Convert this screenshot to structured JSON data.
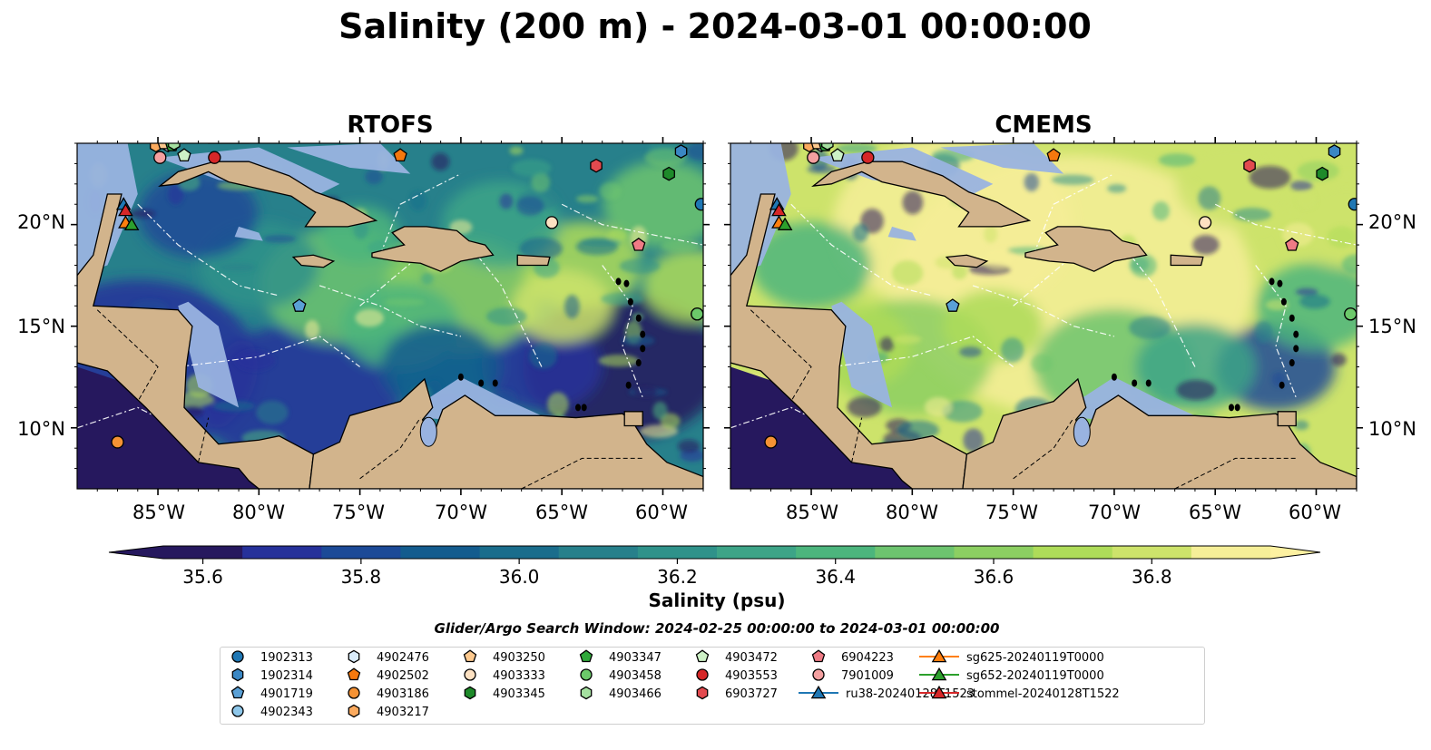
{
  "suptitle": "Salinity (200 m) - 2024-03-01 00:00:00",
  "panels": [
    {
      "title": "RTOFS",
      "style": "rtofs"
    },
    {
      "title": "CMEMS",
      "style": "cmems"
    }
  ],
  "map": {
    "lon_ticks": [
      "85°W",
      "80°W",
      "75°W",
      "70°W",
      "65°W",
      "60°W"
    ],
    "lat_ticks": [
      "20°N",
      "15°N",
      "10°N"
    ],
    "land_color": "#D2B48C",
    "shelf_color": "#99B3E0"
  },
  "colorbar": {
    "label": "Salinity (psu)",
    "ticks": [
      "35.6",
      "35.8",
      "36.0",
      "36.2",
      "36.4",
      "36.6",
      "36.8"
    ],
    "colors": [
      "#26185e",
      "#26319a",
      "#1c4a97",
      "#135c8e",
      "#1a6d8c",
      "#27808b",
      "#2f928a",
      "#3da487",
      "#4cb57d",
      "#6dc46f",
      "#8ccf62",
      "#aedc59",
      "#cde36b",
      "#f6ef98"
    ],
    "extend_low": "#26185e",
    "extend_high": "#fdf1a1"
  },
  "search_window": "Glider/Argo Search Window: 2024-02-25 00:00:00 to 2024-03-01 00:00:00",
  "chart_data": {
    "type": "heatmap",
    "title": "Salinity (200 m) - 2024-03-01 00:00:00",
    "panels": [
      "RTOFS",
      "CMEMS"
    ],
    "xlim": [
      -89,
      -58
    ],
    "ylim": [
      7,
      24
    ],
    "x_ticks": [
      -85,
      -80,
      -75,
      -70,
      -65,
      -60
    ],
    "y_ticks": [
      20,
      15,
      10
    ],
    "colorbar_range": [
      35.55,
      36.95
    ],
    "colorbar_ticks": [
      35.6,
      35.8,
      36.0,
      36.2,
      36.4,
      36.6,
      36.8
    ],
    "colorbar_label": "Salinity (psu)",
    "platforms": [
      {
        "name": "1902313",
        "marker": "circle",
        "color": "#1f77b4",
        "lon": -58.1,
        "lat": 21.0
      },
      {
        "name": "1902314",
        "marker": "hexagon",
        "color": "#3a87c4",
        "lon": -59.1,
        "lat": 23.6
      },
      {
        "name": "4901719",
        "marker": "pentagon",
        "color": "#5aa0d6",
        "lon": -78.0,
        "lat": 16.0
      },
      {
        "name": "4902343",
        "marker": "circle",
        "color": "#8ec7ea",
        "lon": -58.3,
        "lat": 15.6
      },
      {
        "name": "4902476",
        "marker": "hexagon",
        "color": "#d9ecfb",
        "lon": -84.5,
        "lat": 23.9
      },
      {
        "name": "4902502",
        "marker": "pentagon",
        "color": "#f5780e",
        "lon": -73.0,
        "lat": 23.4
      },
      {
        "name": "4903186",
        "marker": "circle",
        "color": "#f59234",
        "lon": -87.0,
        "lat": 9.3
      },
      {
        "name": "4903217",
        "marker": "hexagon",
        "color": "#fbaa5e",
        "lon": -85.1,
        "lat": 23.9
      },
      {
        "name": "4903250",
        "marker": "pentagon",
        "color": "#fdc98e",
        "lon": -84.7,
        "lat": 24.0
      },
      {
        "name": "4903333",
        "marker": "circle",
        "color": "#fde1c2",
        "lon": -65.5,
        "lat": 20.1
      },
      {
        "name": "4903345",
        "marker": "hexagon",
        "color": "#1e8a2a",
        "lon": -59.7,
        "lat": 22.5
      },
      {
        "name": "4903347",
        "marker": "pentagon",
        "color": "#2fa83a",
        "lon": -84.3,
        "lat": 23.9
      },
      {
        "name": "4903458",
        "marker": "circle",
        "color": "#6cc96a",
        "lon": -58.3,
        "lat": 15.6
      },
      {
        "name": "4903466",
        "marker": "hexagon",
        "color": "#a5e0a0",
        "lon": -84.2,
        "lat": 24.0
      },
      {
        "name": "4903472",
        "marker": "pentagon",
        "color": "#cdf1c6",
        "lon": -83.7,
        "lat": 23.4
      },
      {
        "name": "4903553",
        "marker": "circle",
        "color": "#d62728",
        "lon": -82.2,
        "lat": 23.3
      },
      {
        "name": "6903727",
        "marker": "hexagon",
        "color": "#e24a4f",
        "lon": -63.3,
        "lat": 22.9
      },
      {
        "name": "6904223",
        "marker": "pentagon",
        "color": "#ef7b85",
        "lon": -61.2,
        "lat": 19.0
      },
      {
        "name": "7901009",
        "marker": "circle",
        "color": "#f4a0a0",
        "lon": -84.9,
        "lat": 23.3
      },
      {
        "name": "ru38-20240128T1523",
        "marker": "triangle",
        "color": "#1f77b4",
        "lon": -86.7,
        "lat": 21.0
      },
      {
        "name": "sg625-20240119T0000",
        "marker": "triangle",
        "color": "#ff7f0e",
        "lon": -86.6,
        "lat": 20.1
      },
      {
        "name": "sg652-20240119T0000",
        "marker": "triangle",
        "color": "#2ca02c",
        "lon": -86.3,
        "lat": 20.0
      },
      {
        "name": "stommel-20240128T1522",
        "marker": "triangle",
        "color": "#d62728",
        "lon": -86.6,
        "lat": 20.7
      }
    ]
  }
}
